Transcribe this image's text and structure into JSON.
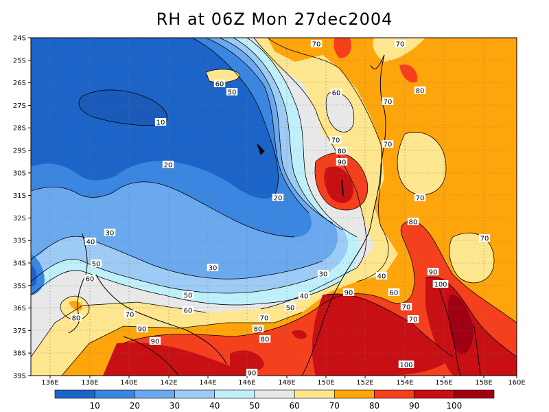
{
  "title": "RH at 06Z Mon 27dec2004",
  "map": {
    "lat_labels": [
      "24S",
      "25S",
      "26S",
      "27S",
      "28S",
      "29S",
      "30S",
      "31S",
      "32S",
      "33S",
      "34S",
      "35S",
      "36S",
      "37S",
      "38S",
      "39S"
    ],
    "lon_labels": [
      "136E",
      "138E",
      "140E",
      "142E",
      "144E",
      "146E",
      "148E",
      "150E",
      "152E",
      "154E",
      "156E",
      "158E",
      "160E"
    ],
    "contour_labels": [
      "70",
      "70",
      "60",
      "50",
      "80",
      "10",
      "60",
      "70",
      "20",
      "70",
      "80",
      "90",
      "70",
      "20",
      "30",
      "80",
      "70",
      "40",
      "50",
      "30",
      "90",
      "60",
      "50",
      "100",
      "30",
      "40",
      "70",
      "50",
      "90",
      "70",
      "80",
      "70",
      "60",
      "70",
      "80",
      "80",
      "90",
      "90",
      "100"
    ],
    "colors": {
      "c10": "#1c64c8",
      "c20": "#3a86e0",
      "c30": "#6aa9ee",
      "c40": "#9ecbf5",
      "c50": "#bff0fa",
      "c60": "#e8e8e8",
      "c70": "#fee68f",
      "c80": "#fea50b",
      "c90": "#f5401e",
      "c100": "#c80f14",
      "c110": "#a00014"
    }
  },
  "colorbar": {
    "labels": [
      "10",
      "20",
      "30",
      "40",
      "50",
      "60",
      "70",
      "80",
      "90",
      "100"
    ]
  }
}
